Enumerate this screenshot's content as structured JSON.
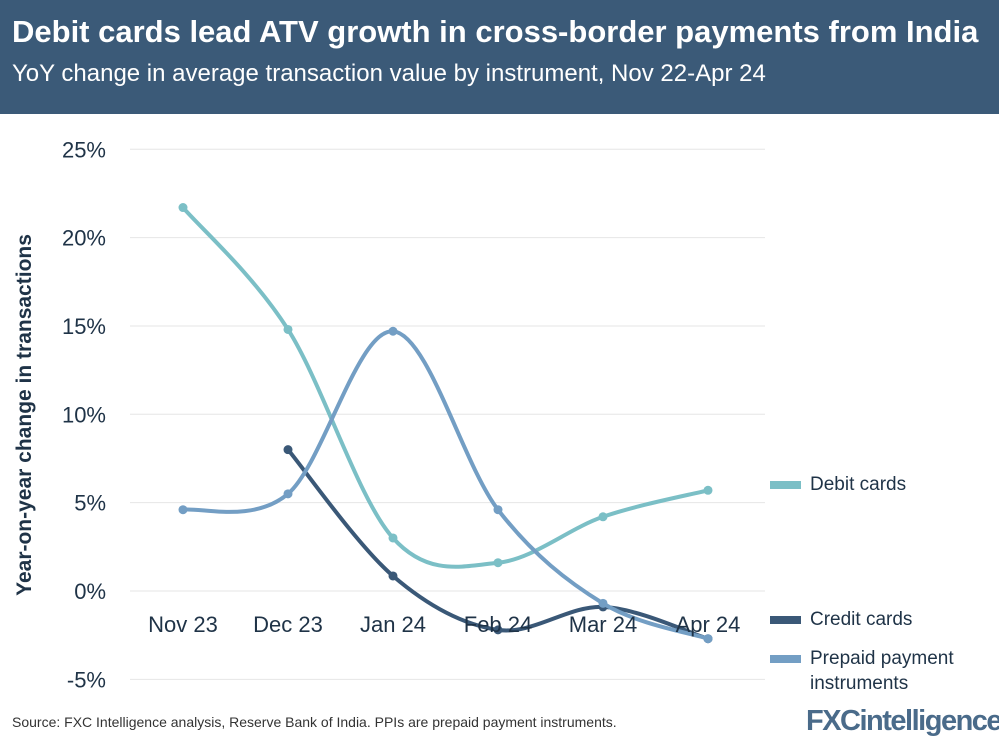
{
  "header": {
    "title": "Debit cards lead ATV growth in cross-border payments from India",
    "subtitle": "YoY change in average transaction value by instrument, Nov 22-Apr 24"
  },
  "footer": {
    "source": "Source: FXC Intelligence analysis, Reserve Bank of India. PPIs are prepaid payment instruments.",
    "logo": "FXCintelligence"
  },
  "chart_data": {
    "type": "line",
    "title": "",
    "xlabel": "",
    "ylabel": "Year-on-year change in transactions",
    "categories": [
      "Nov 23",
      "Dec 23",
      "Jan 24",
      "Feb 24",
      "Mar 24",
      "Apr 24"
    ],
    "ylim": [
      -5,
      25
    ],
    "yticks": [
      -5,
      0,
      5,
      10,
      15,
      20,
      25
    ],
    "ytick_labels": [
      "-5%",
      "0%",
      "5%",
      "10%",
      "15%",
      "20%",
      "25%"
    ],
    "grid": true,
    "legend_placement": "right",
    "series": [
      {
        "name": "Debit cards",
        "color": "#7bbfc6",
        "values": [
          21.7,
          14.8,
          3.0,
          1.6,
          4.2,
          5.7
        ]
      },
      {
        "name": "Credit cards",
        "color": "#3a5877",
        "values": [
          null,
          8.0,
          0.85,
          -2.2,
          -0.9,
          -2.7
        ]
      },
      {
        "name": "Prepaid payment instruments",
        "color": "#739ec4",
        "values": [
          4.6,
          5.5,
          14.7,
          4.6,
          -0.7,
          -2.7
        ]
      }
    ]
  }
}
